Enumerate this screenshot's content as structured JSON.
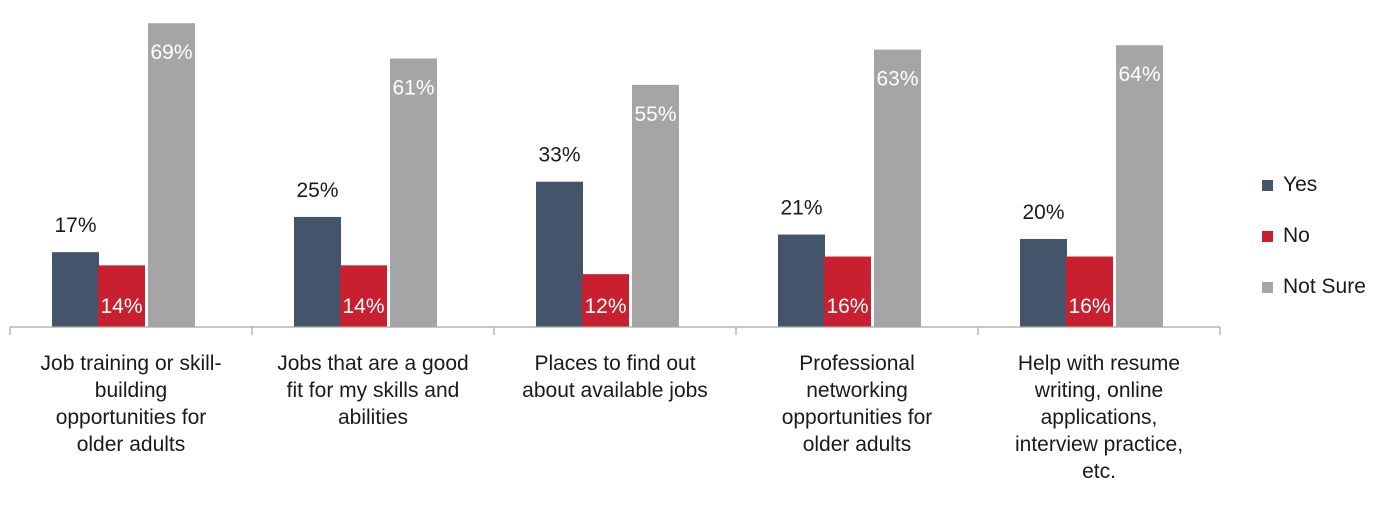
{
  "chart_data": {
    "type": "bar",
    "categories": [
      "Job training or skill-building opportunities for older adults",
      "Jobs that are a good fit for my skills and abilities",
      "Places to find out about available jobs",
      "Professional networking opportunities for older adults",
      "Help with resume writing, online applications, interview practice, etc."
    ],
    "category_lines": [
      [
        "Job training or skill-",
        "building",
        "opportunities for",
        "older adults"
      ],
      [
        "Jobs that are a good",
        "fit for my skills and",
        "abilities"
      ],
      [
        "Places to find out",
        "about available jobs"
      ],
      [
        "Professional",
        "networking",
        "opportunities for",
        "older adults"
      ],
      [
        "Help with resume",
        "writing, online",
        "applications,",
        "interview practice,",
        "etc."
      ]
    ],
    "series": [
      {
        "name": "Yes",
        "color": "#44546a",
        "values": [
          17,
          25,
          33,
          21,
          20
        ],
        "labels": [
          "17%",
          "25%",
          "33%",
          "21%",
          "20%"
        ]
      },
      {
        "name": "No",
        "color": "#c8202f",
        "values": [
          14,
          14,
          12,
          16,
          16
        ],
        "labels": [
          "14%",
          "14%",
          "12%",
          "16%",
          "16%"
        ]
      },
      {
        "name": "Not Sure",
        "color": "#a5a5a5",
        "values": [
          69,
          61,
          55,
          63,
          64
        ],
        "labels": [
          "69%",
          "61%",
          "55%",
          "63%",
          "64%"
        ]
      }
    ],
    "ylim": [
      0,
      72
    ],
    "legend_position": "right",
    "grid": false
  }
}
